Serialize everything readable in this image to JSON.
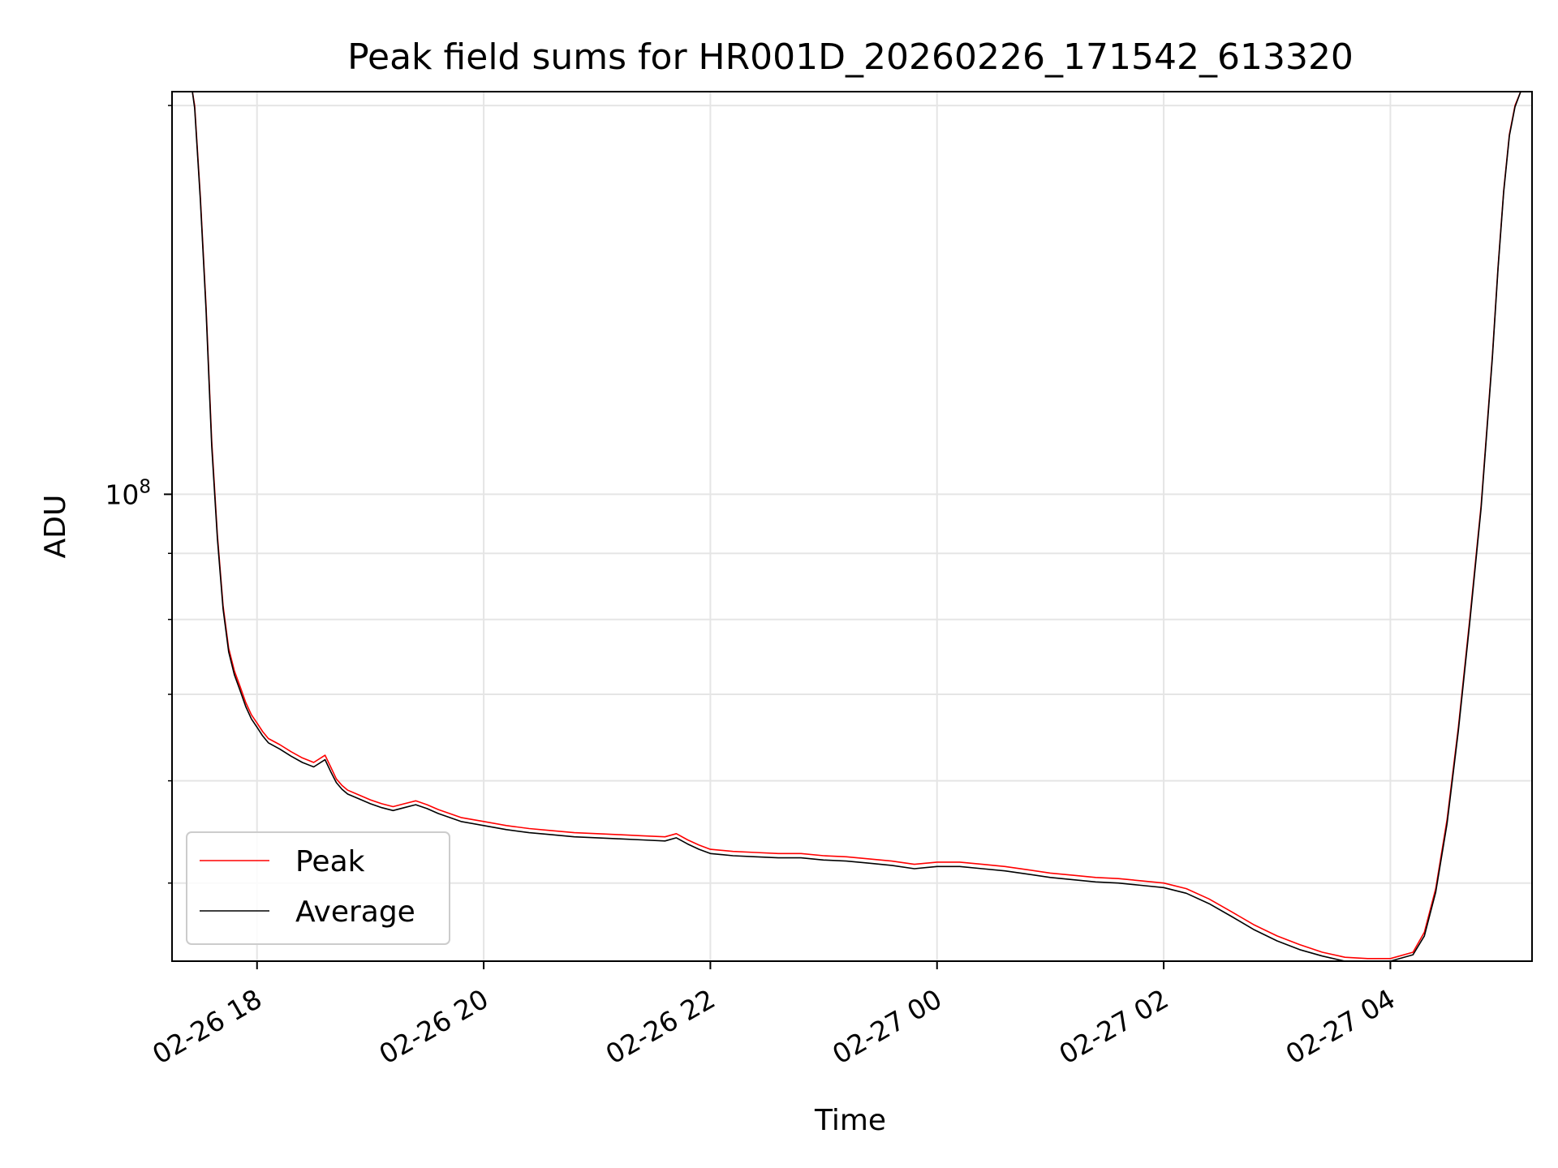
{
  "chart_data": {
    "type": "line",
    "title": "Peak field sums for HR001D_20260226_171542_613320",
    "xlabel": "Time",
    "ylabel": "ADU",
    "yscale": "log",
    "xlim_hours": [
      -0.75,
      11.25
    ],
    "ylim": [
      43500000,
      205000000
    ],
    "grid": true,
    "legend": {
      "location": "lower left",
      "entries": [
        "Peak",
        "Average"
      ]
    },
    "x_ticks": [
      {
        "hours": 0,
        "label": "02-26 18"
      },
      {
        "hours": 2,
        "label": "02-26 20"
      },
      {
        "hours": 4,
        "label": "02-26 22"
      },
      {
        "hours": 6,
        "label": "02-27 00"
      },
      {
        "hours": 8,
        "label": "02-27 02"
      },
      {
        "hours": 10,
        "label": "02-27 04"
      }
    ],
    "y_major_ticks": [
      {
        "value": 100000000,
        "base": "10",
        "exp": "8"
      }
    ],
    "y_minor_ticks": [
      50000000,
      60000000,
      70000000,
      80000000,
      90000000,
      200000000
    ],
    "series": [
      {
        "name": "Peak",
        "color": "#ff0000",
        "x_hours": [
          -0.57,
          -0.55,
          -0.5,
          -0.45,
          -0.4,
          -0.35,
          -0.3,
          -0.25,
          -0.2,
          -0.15,
          -0.1,
          -0.05,
          0.0,
          0.05,
          0.1,
          0.2,
          0.3,
          0.4,
          0.5,
          0.6,
          0.65,
          0.7,
          0.75,
          0.8,
          0.9,
          1.0,
          1.1,
          1.2,
          1.3,
          1.4,
          1.5,
          1.6,
          1.7,
          1.8,
          2.0,
          2.2,
          2.4,
          2.6,
          2.8,
          3.0,
          3.2,
          3.4,
          3.6,
          3.7,
          3.8,
          3.9,
          4.0,
          4.2,
          4.4,
          4.6,
          4.8,
          5.0,
          5.2,
          5.4,
          5.6,
          5.8,
          6.0,
          6.2,
          6.4,
          6.6,
          6.8,
          7.0,
          7.2,
          7.4,
          7.6,
          7.8,
          8.0,
          8.2,
          8.4,
          8.6,
          8.8,
          9.0,
          9.2,
          9.4,
          9.6,
          9.8,
          10.0,
          10.2,
          10.3,
          10.4,
          10.5,
          10.6,
          10.7,
          10.8,
          10.9,
          10.95,
          11.0,
          11.05,
          11.1,
          11.15,
          11.2
        ],
        "values": [
          205000000,
          200000000,
          170000000,
          140000000,
          110000000,
          93000000,
          82000000,
          76000000,
          73000000,
          71000000,
          69000000,
          67500000,
          66500000,
          65500000,
          64700000,
          64000000,
          63200000,
          62500000,
          62000000,
          62800000,
          61500000,
          60200000,
          59500000,
          59000000,
          58500000,
          58000000,
          57600000,
          57300000,
          57600000,
          57900000,
          57500000,
          57000000,
          56600000,
          56200000,
          55800000,
          55400000,
          55100000,
          54900000,
          54700000,
          54600000,
          54500000,
          54400000,
          54300000,
          54600000,
          54000000,
          53500000,
          53100000,
          52900000,
          52800000,
          52700000,
          52700000,
          52500000,
          52400000,
          52200000,
          52000000,
          51700000,
          51900000,
          51900000,
          51700000,
          51500000,
          51200000,
          50900000,
          50700000,
          50500000,
          50400000,
          50200000,
          50000000,
          49500000,
          48600000,
          47500000,
          46400000,
          45500000,
          44800000,
          44200000,
          43800000,
          43700000,
          43700000,
          44200000,
          45800000,
          49500000,
          56000000,
          66000000,
          80000000,
          98000000,
          128000000,
          150000000,
          172000000,
          190000000,
          200000000,
          205000000,
          205000000
        ]
      },
      {
        "name": "Average",
        "color": "#000000",
        "x_hours": [
          -0.57,
          -0.55,
          -0.5,
          -0.45,
          -0.4,
          -0.35,
          -0.3,
          -0.25,
          -0.2,
          -0.15,
          -0.1,
          -0.05,
          0.0,
          0.05,
          0.1,
          0.2,
          0.3,
          0.4,
          0.5,
          0.6,
          0.65,
          0.7,
          0.75,
          0.8,
          0.9,
          1.0,
          1.1,
          1.2,
          1.3,
          1.4,
          1.5,
          1.6,
          1.7,
          1.8,
          2.0,
          2.2,
          2.4,
          2.6,
          2.8,
          3.0,
          3.2,
          3.4,
          3.6,
          3.7,
          3.8,
          3.9,
          4.0,
          4.2,
          4.4,
          4.6,
          4.8,
          5.0,
          5.2,
          5.4,
          5.6,
          5.8,
          6.0,
          6.2,
          6.4,
          6.6,
          6.8,
          7.0,
          7.2,
          7.4,
          7.6,
          7.8,
          8.0,
          8.2,
          8.4,
          8.6,
          8.8,
          9.0,
          9.2,
          9.4,
          9.6,
          9.8,
          10.0,
          10.2,
          10.3,
          10.4,
          10.5,
          10.6,
          10.7,
          10.8,
          10.9,
          10.95,
          11.0,
          11.05,
          11.1,
          11.15,
          11.2
        ],
        "values": [
          205000000,
          199000000,
          169000000,
          139000000,
          109000000,
          92400000,
          81500000,
          75500000,
          72500000,
          70500000,
          68500000,
          67000000,
          66000000,
          65000000,
          64200000,
          63500000,
          62700000,
          62000000,
          61500000,
          62300000,
          61000000,
          59800000,
          59100000,
          58600000,
          58100000,
          57600000,
          57200000,
          56900000,
          57200000,
          57500000,
          57100000,
          56600000,
          56200000,
          55800000,
          55400000,
          55000000,
          54700000,
          54500000,
          54300000,
          54200000,
          54100000,
          54000000,
          53900000,
          54200000,
          53600000,
          53100000,
          52700000,
          52500000,
          52400000,
          52300000,
          52300000,
          52100000,
          52000000,
          51800000,
          51600000,
          51300000,
          51500000,
          51500000,
          51300000,
          51100000,
          50800000,
          50500000,
          50300000,
          50100000,
          50000000,
          49800000,
          49600000,
          49100000,
          48200000,
          47100000,
          46000000,
          45100000,
          44400000,
          43900000,
          43500000,
          43500000,
          43500000,
          44000000,
          45500000,
          49200000,
          55600000,
          65600000,
          79500000,
          97500000,
          127500000,
          149500000,
          171500000,
          189500000,
          199500000,
          205000000,
          205000000
        ]
      }
    ]
  }
}
